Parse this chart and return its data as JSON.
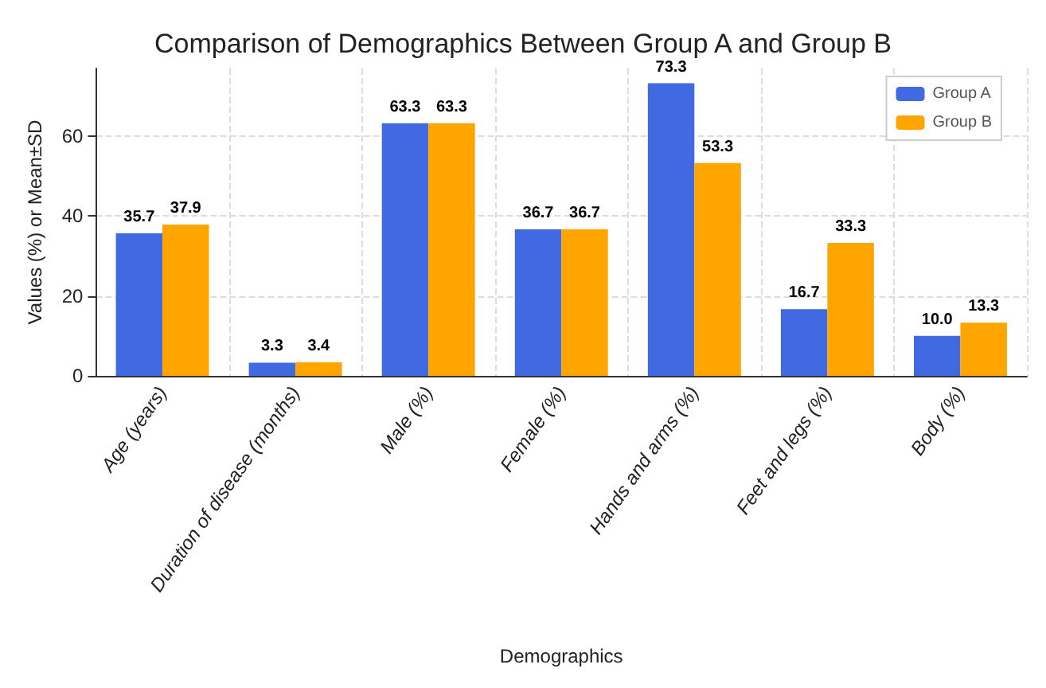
{
  "chart_data": {
    "type": "bar",
    "title": "Comparison of Demographics Between Group A and Group B",
    "xlabel": "Demographics",
    "ylabel": "Values (%) or Mean±SD",
    "categories": [
      "Age (years)",
      "Duration of disease (months)",
      "Male (%)",
      "Female (%)",
      "Hands and arms (%)",
      "Feet and legs (%)",
      "Body (%)"
    ],
    "series": [
      {
        "name": "Group A",
        "color": "#4169e1",
        "values": [
          35.7,
          3.3,
          63.3,
          36.7,
          73.3,
          16.7,
          10.0
        ],
        "value_labels": [
          "35.7",
          "3.3",
          "63.3",
          "36.7",
          "73.3",
          "16.7",
          "10.0"
        ]
      },
      {
        "name": "Group B",
        "color": "#ffa500",
        "values": [
          37.9,
          3.4,
          63.3,
          36.7,
          53.3,
          33.3,
          13.3
        ],
        "value_labels": [
          "37.9",
          "3.4",
          "63.3",
          "36.7",
          "53.3",
          "33.3",
          "13.3"
        ]
      }
    ],
    "ylim": [
      0,
      77
    ],
    "yticks": [
      0,
      20,
      40,
      60
    ],
    "grid": true,
    "legend": "top right"
  }
}
